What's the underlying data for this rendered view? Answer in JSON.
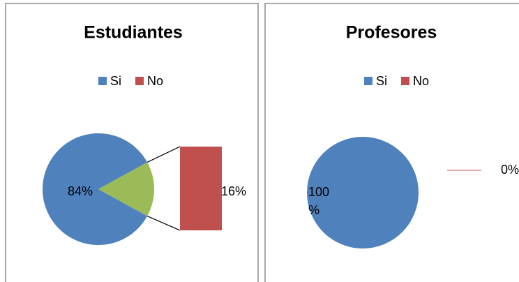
{
  "chart_data": [
    {
      "type": "pie",
      "title": "Estudiantes",
      "categories": [
        "Si",
        "No"
      ],
      "values": [
        84,
        16
      ],
      "value_labels": [
        "84%",
        "16%"
      ],
      "colors": [
        "#4f81bd",
        "#c0504d"
      ],
      "split_color": "#9bbb59"
    },
    {
      "type": "pie",
      "title": "Profesores",
      "categories": [
        "Si",
        "No"
      ],
      "values": [
        100,
        0
      ],
      "value_labels": [
        "100 %",
        "0%"
      ],
      "colors": [
        "#4f81bd",
        "#c0504d"
      ],
      "split_color": "#9bbb59"
    }
  ]
}
